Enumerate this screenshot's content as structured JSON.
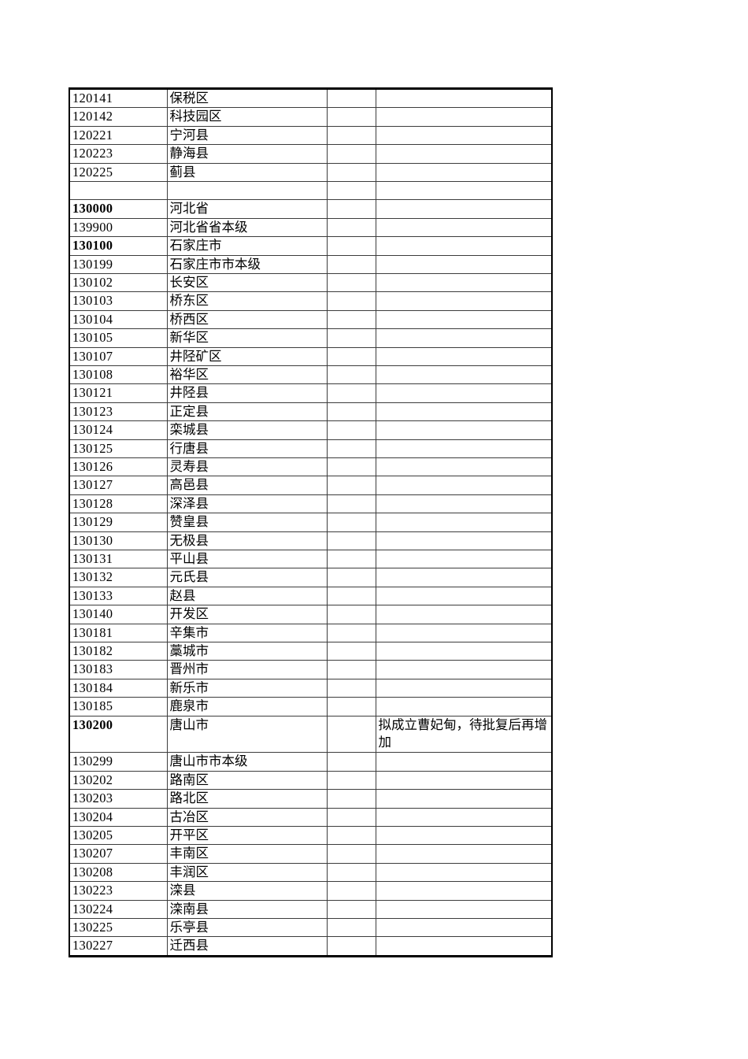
{
  "colors": {
    "background": "#ffffff",
    "text": "#000000",
    "outer_border": "#000000",
    "inner_border": "#3c3c3c"
  },
  "table": {
    "description": "administrative-division-code-table",
    "rows": [
      {
        "code": "120141",
        "name": "保税区",
        "note": "",
        "bold": false,
        "tall": false
      },
      {
        "code": "120142",
        "name": "科技园区",
        "note": "",
        "bold": false,
        "tall": false
      },
      {
        "code": "120221",
        "name": "宁河县",
        "note": "",
        "bold": false,
        "tall": false
      },
      {
        "code": "120223",
        "name": "静海县",
        "note": "",
        "bold": false,
        "tall": false
      },
      {
        "code": "120225",
        "name": "蓟县",
        "note": "",
        "bold": false,
        "tall": false
      },
      {
        "code": "",
        "name": "",
        "note": "",
        "bold": false,
        "tall": false
      },
      {
        "code": "130000",
        "name": "河北省",
        "note": "",
        "bold": true,
        "tall": false
      },
      {
        "code": "139900",
        "name": "河北省省本级",
        "note": "",
        "bold": false,
        "tall": false
      },
      {
        "code": "130100",
        "name": "石家庄市",
        "note": "",
        "bold": true,
        "tall": false
      },
      {
        "code": "130199",
        "name": "石家庄市市本级",
        "note": "",
        "bold": false,
        "tall": false
      },
      {
        "code": "130102",
        "name": "长安区",
        "note": "",
        "bold": false,
        "tall": false
      },
      {
        "code": "130103",
        "name": "桥东区",
        "note": "",
        "bold": false,
        "tall": false
      },
      {
        "code": "130104",
        "name": "桥西区",
        "note": "",
        "bold": false,
        "tall": false
      },
      {
        "code": "130105",
        "name": "新华区",
        "note": "",
        "bold": false,
        "tall": false
      },
      {
        "code": "130107",
        "name": "井陉矿区",
        "note": "",
        "bold": false,
        "tall": false
      },
      {
        "code": "130108",
        "name": "裕华区",
        "note": "",
        "bold": false,
        "tall": false
      },
      {
        "code": "130121",
        "name": "井陉县",
        "note": "",
        "bold": false,
        "tall": false
      },
      {
        "code": "130123",
        "name": "正定县",
        "note": "",
        "bold": false,
        "tall": false
      },
      {
        "code": "130124",
        "name": "栾城县",
        "note": "",
        "bold": false,
        "tall": false
      },
      {
        "code": "130125",
        "name": "行唐县",
        "note": "",
        "bold": false,
        "tall": false
      },
      {
        "code": "130126",
        "name": "灵寿县",
        "note": "",
        "bold": false,
        "tall": false
      },
      {
        "code": "130127",
        "name": "高邑县",
        "note": "",
        "bold": false,
        "tall": false
      },
      {
        "code": "130128",
        "name": "深泽县",
        "note": "",
        "bold": false,
        "tall": false
      },
      {
        "code": "130129",
        "name": "赞皇县",
        "note": "",
        "bold": false,
        "tall": false
      },
      {
        "code": "130130",
        "name": "无极县",
        "note": "",
        "bold": false,
        "tall": false
      },
      {
        "code": "130131",
        "name": "平山县",
        "note": "",
        "bold": false,
        "tall": false
      },
      {
        "code": "130132",
        "name": "元氏县",
        "note": "",
        "bold": false,
        "tall": false
      },
      {
        "code": "130133",
        "name": "赵县",
        "note": "",
        "bold": false,
        "tall": false
      },
      {
        "code": "130140",
        "name": "开发区",
        "note": "",
        "bold": false,
        "tall": false
      },
      {
        "code": "130181",
        "name": "辛集市",
        "note": "",
        "bold": false,
        "tall": false
      },
      {
        "code": "130182",
        "name": "藁城市",
        "note": "",
        "bold": false,
        "tall": false
      },
      {
        "code": "130183",
        "name": "晋州市",
        "note": "",
        "bold": false,
        "tall": false
      },
      {
        "code": "130184",
        "name": "新乐市",
        "note": "",
        "bold": false,
        "tall": false
      },
      {
        "code": "130185",
        "name": "鹿泉市",
        "note": "",
        "bold": false,
        "tall": false
      },
      {
        "code": "130200",
        "name": "唐山市",
        "note": "拟成立曹妃甸，待批复后再增加",
        "bold": true,
        "tall": true
      },
      {
        "code": "130299",
        "name": "唐山市市本级",
        "note": "",
        "bold": false,
        "tall": false
      },
      {
        "code": "130202",
        "name": "路南区",
        "note": "",
        "bold": false,
        "tall": false
      },
      {
        "code": "130203",
        "name": "路北区",
        "note": "",
        "bold": false,
        "tall": false
      },
      {
        "code": "130204",
        "name": "古冶区",
        "note": "",
        "bold": false,
        "tall": false
      },
      {
        "code": "130205",
        "name": "开平区",
        "note": "",
        "bold": false,
        "tall": false
      },
      {
        "code": "130207",
        "name": "丰南区",
        "note": "",
        "bold": false,
        "tall": false
      },
      {
        "code": "130208",
        "name": "丰润区",
        "note": "",
        "bold": false,
        "tall": false
      },
      {
        "code": "130223",
        "name": "滦县",
        "note": "",
        "bold": false,
        "tall": false
      },
      {
        "code": "130224",
        "name": "滦南县",
        "note": "",
        "bold": false,
        "tall": false
      },
      {
        "code": "130225",
        "name": "乐亭县",
        "note": "",
        "bold": false,
        "tall": false
      },
      {
        "code": "130227",
        "name": "迁西县",
        "note": "",
        "bold": false,
        "tall": false
      }
    ]
  }
}
